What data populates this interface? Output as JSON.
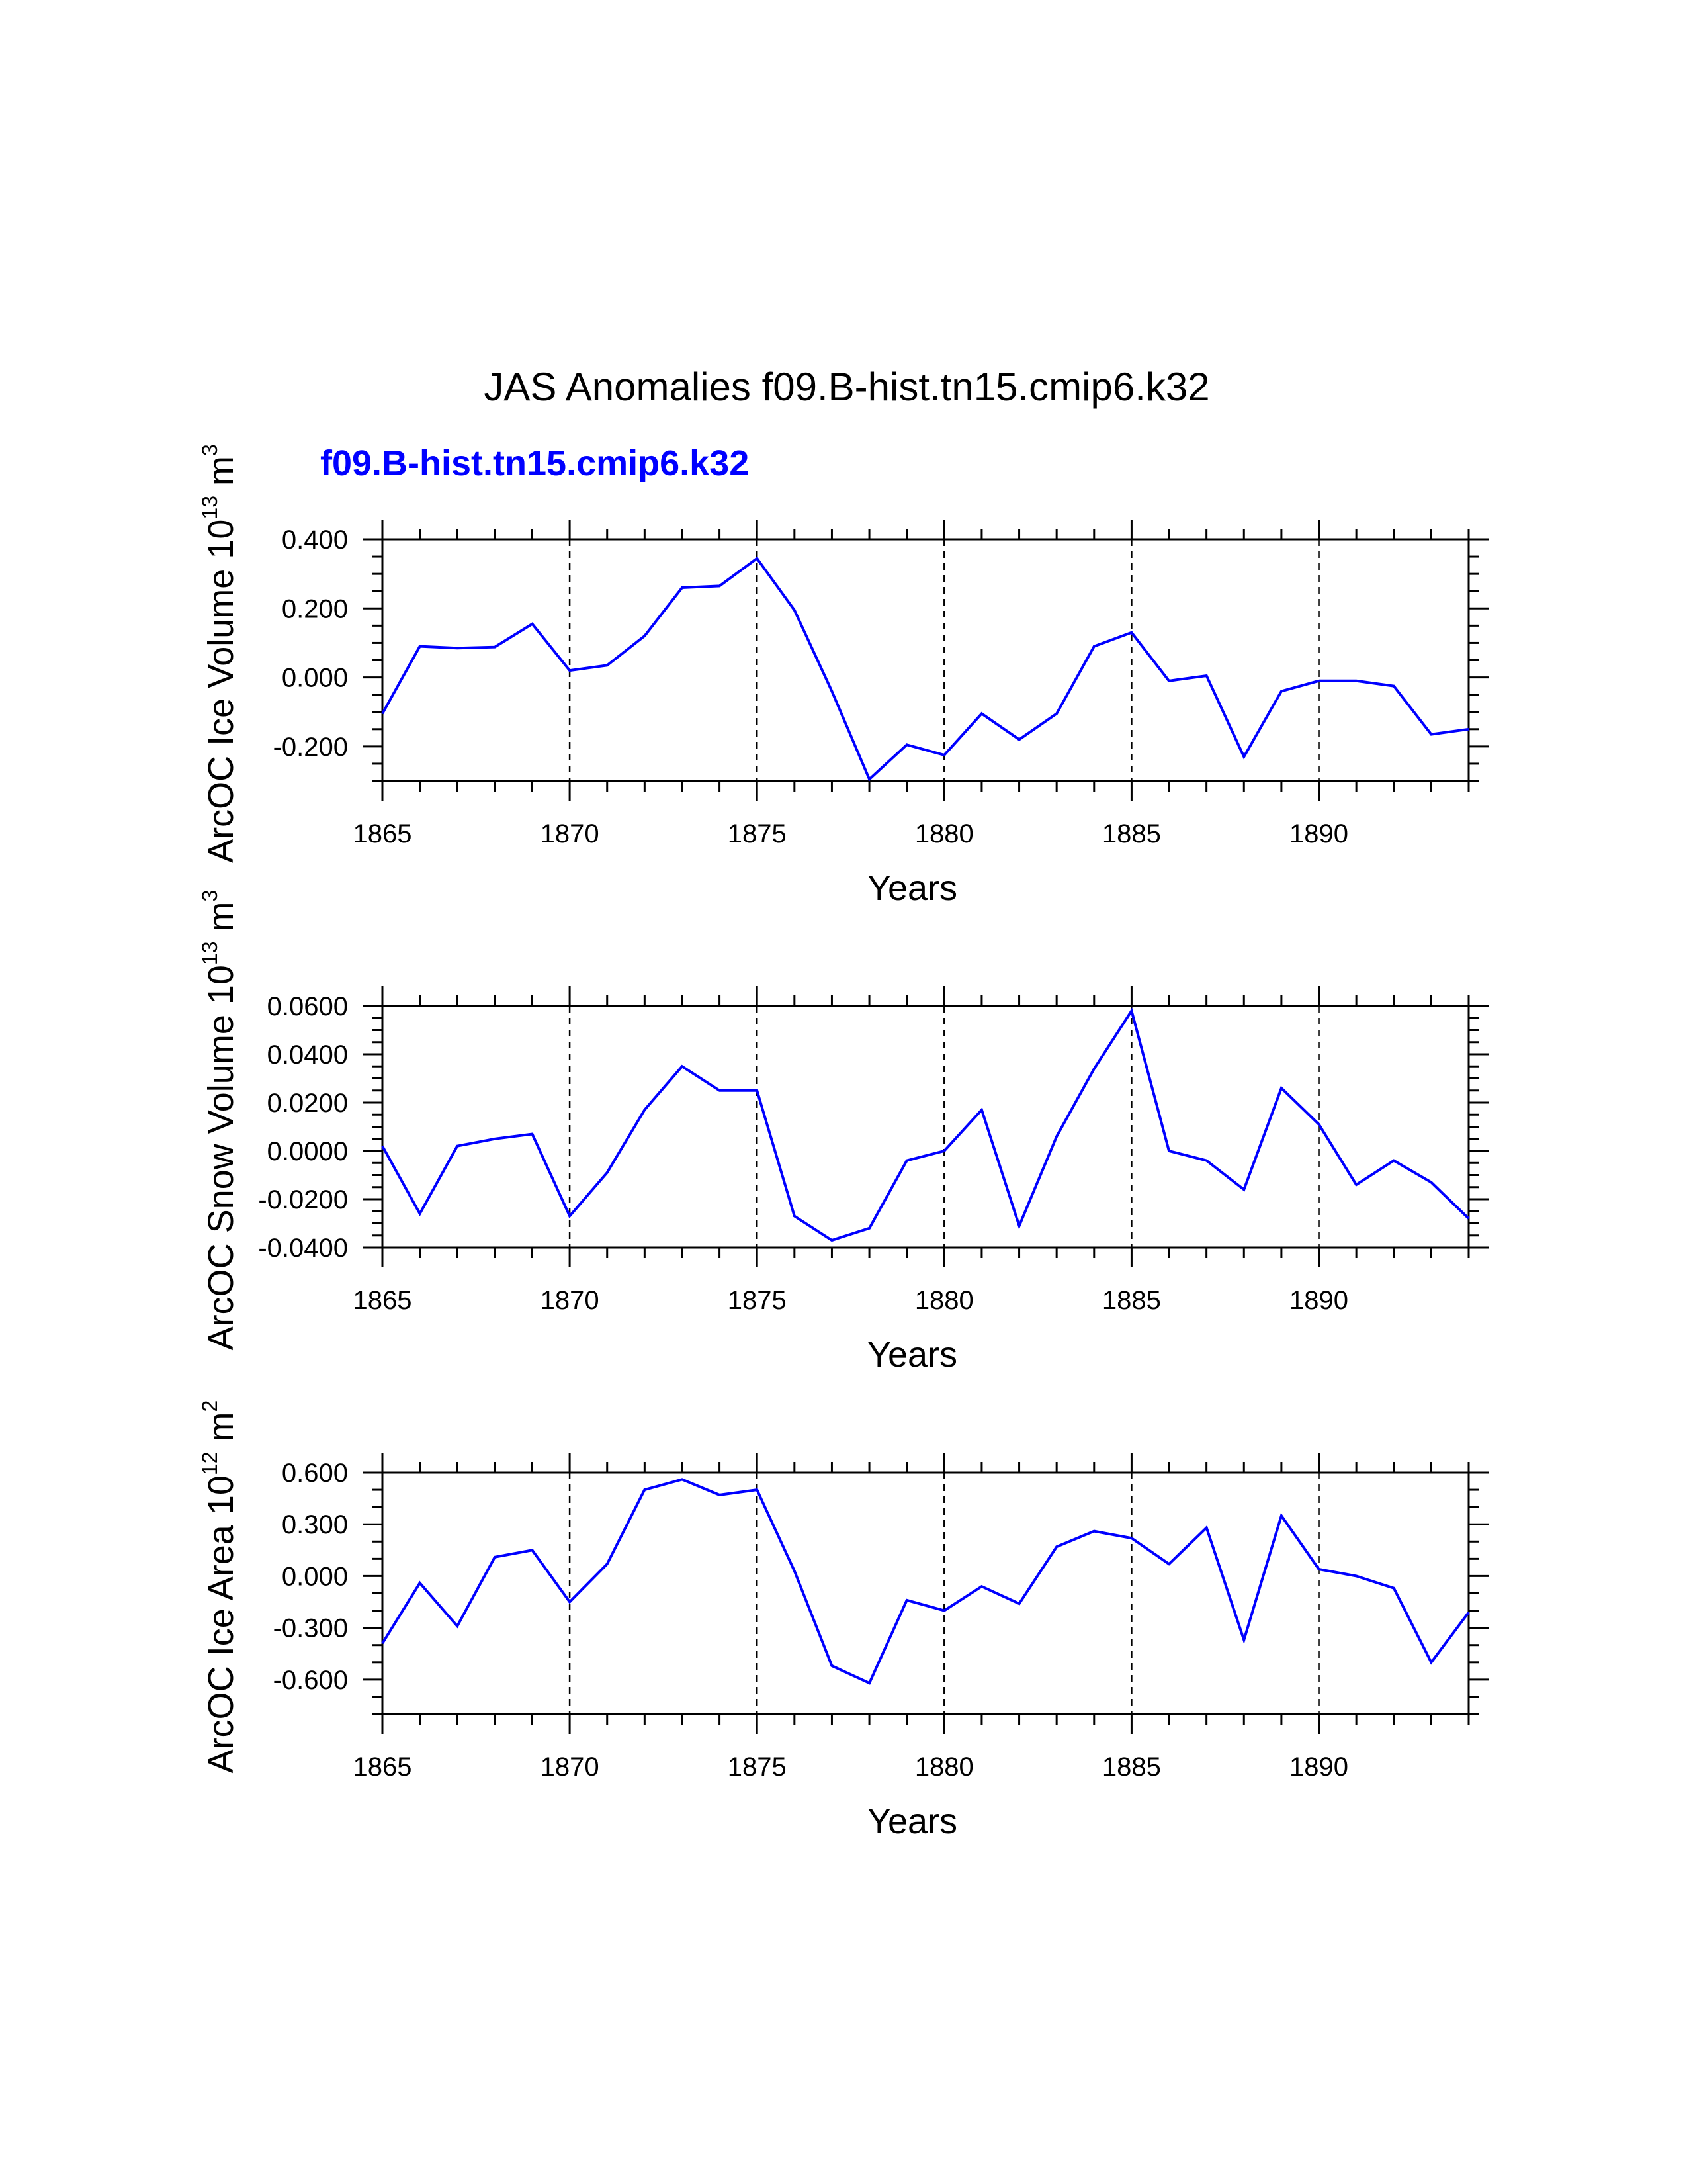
{
  "figure": {
    "title": "JAS Anomalies f09.B-hist.tn15.cmip6.k32",
    "legend_label": "f09.B-hist.tn15.cmip6.k32",
    "series_color": "#0000ff"
  },
  "chart_data": [
    {
      "type": "line",
      "title": "JAS Anomalies f09.B-hist.tn15.cmip6.k32",
      "xlabel": "Years",
      "ylabel": "ArcOC Ice Volume",
      "yunit_base": "10",
      "yunit_exp": "13",
      "yunit_tail": " m",
      "yunit_tail_exp": "3",
      "xlim": [
        1865,
        1894
      ],
      "ylim": [
        -0.3,
        0.4
      ],
      "xticks": [
        1865,
        1870,
        1875,
        1880,
        1885,
        1890
      ],
      "xtick_labels": [
        "1865",
        "1870",
        "1875",
        "1880",
        "1885",
        "1890"
      ],
      "yticks": [
        -0.2,
        0.0,
        0.2,
        0.4
      ],
      "ytick_labels": [
        "-0.200",
        "0.000",
        "0.200",
        "0.400"
      ],
      "yminor_step": 0.05,
      "grid": "dashed vertical at major x ticks",
      "series": [
        {
          "name": "f09.B-hist.tn15.cmip6.k32",
          "x": [
            1865,
            1866,
            1867,
            1868,
            1869,
            1870,
            1871,
            1872,
            1873,
            1874,
            1875,
            1876,
            1877,
            1878,
            1879,
            1880,
            1881,
            1882,
            1883,
            1884,
            1885,
            1886,
            1887,
            1888,
            1889,
            1890,
            1891,
            1892,
            1893,
            1894
          ],
          "values": [
            -0.105,
            0.09,
            0.085,
            0.088,
            0.155,
            0.02,
            0.035,
            0.12,
            0.26,
            0.265,
            0.345,
            0.195,
            -0.04,
            -0.295,
            -0.195,
            -0.225,
            -0.105,
            -0.18,
            -0.105,
            0.09,
            0.13,
            -0.01,
            0.005,
            -0.23,
            -0.04,
            -0.01,
            -0.01,
            -0.025,
            -0.165,
            -0.15
          ]
        }
      ]
    },
    {
      "type": "line",
      "xlabel": "Years",
      "ylabel": "ArcOC Snow Volume",
      "yunit_base": "10",
      "yunit_exp": "13",
      "yunit_tail": " m",
      "yunit_tail_exp": "3",
      "xlim": [
        1865,
        1894
      ],
      "ylim": [
        -0.04,
        0.06
      ],
      "xticks": [
        1865,
        1870,
        1875,
        1880,
        1885,
        1890
      ],
      "xtick_labels": [
        "1865",
        "1870",
        "1875",
        "1880",
        "1885",
        "1890"
      ],
      "yticks": [
        -0.04,
        -0.02,
        0.0,
        0.02,
        0.04,
        0.06
      ],
      "ytick_labels": [
        "-0.0400",
        "-0.0200",
        "0.0000",
        "0.0200",
        "0.0400",
        "0.0600"
      ],
      "yminor_step": 0.005,
      "grid": "dashed vertical at major x ticks",
      "series": [
        {
          "name": "f09.B-hist.tn15.cmip6.k32",
          "x": [
            1865,
            1866,
            1867,
            1868,
            1869,
            1870,
            1871,
            1872,
            1873,
            1874,
            1875,
            1876,
            1877,
            1878,
            1879,
            1880,
            1881,
            1882,
            1883,
            1884,
            1885,
            1886,
            1887,
            1888,
            1889,
            1890,
            1891,
            1892,
            1893,
            1894
          ],
          "values": [
            0.002,
            -0.026,
            0.002,
            0.005,
            0.007,
            -0.027,
            -0.009,
            0.017,
            0.035,
            0.025,
            0.025,
            -0.027,
            -0.037,
            -0.032,
            -0.004,
            0.0,
            0.017,
            -0.031,
            0.006,
            0.034,
            0.058,
            0.0,
            -0.004,
            -0.016,
            0.026,
            0.011,
            -0.014,
            -0.004,
            -0.013,
            -0.028
          ]
        }
      ]
    },
    {
      "type": "line",
      "xlabel": "Years",
      "ylabel": "ArcOC Ice Area",
      "yunit_base": "10",
      "yunit_exp": "12",
      "yunit_tail": " m",
      "yunit_tail_exp": "2",
      "xlim": [
        1865,
        1894
      ],
      "ylim": [
        -0.8,
        0.6
      ],
      "xticks": [
        1865,
        1870,
        1875,
        1880,
        1885,
        1890
      ],
      "xtick_labels": [
        "1865",
        "1870",
        "1875",
        "1880",
        "1885",
        "1890"
      ],
      "yticks": [
        -0.6,
        -0.3,
        0.0,
        0.3,
        0.6
      ],
      "ytick_labels": [
        "-0.600",
        "-0.300",
        "0.000",
        "0.300",
        "0.600"
      ],
      "yminor_step": 0.1,
      "grid": "dashed vertical at major x ticks",
      "series": [
        {
          "name": "f09.B-hist.tn15.cmip6.k32",
          "x": [
            1865,
            1866,
            1867,
            1868,
            1869,
            1870,
            1871,
            1872,
            1873,
            1874,
            1875,
            1876,
            1877,
            1878,
            1879,
            1880,
            1881,
            1882,
            1883,
            1884,
            1885,
            1886,
            1887,
            1888,
            1889,
            1890,
            1891,
            1892,
            1893,
            1894
          ],
          "values": [
            -0.39,
            -0.04,
            -0.29,
            0.11,
            0.15,
            -0.15,
            0.07,
            0.5,
            0.56,
            0.47,
            0.5,
            0.03,
            -0.52,
            -0.62,
            -0.14,
            -0.2,
            -0.06,
            -0.16,
            0.17,
            0.26,
            0.22,
            0.07,
            0.28,
            -0.37,
            0.35,
            0.04,
            0.0,
            -0.07,
            -0.5,
            -0.21
          ]
        }
      ]
    }
  ]
}
